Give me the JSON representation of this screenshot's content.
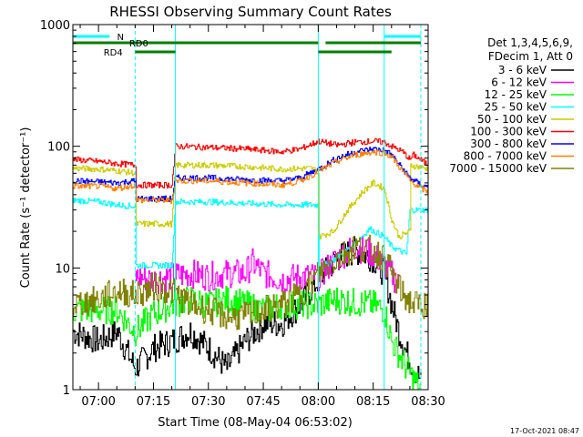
{
  "chart_data": {
    "type": "line",
    "title": "RHESSI Observing Summary Count Rates",
    "xlabel": "Start Time (08-May-04 06:53:02)",
    "ylabel": "Count Rate (s⁻¹ detector⁻¹)",
    "yscale": "log",
    "ylim": [
      1,
      1000
    ],
    "xlim_minutes": [
      -7,
      90
    ],
    "x_ticks": [
      "07:00",
      "07:15",
      "07:30",
      "07:45",
      "08:00",
      "08:15",
      "08:30"
    ],
    "x_tick_minutes": [
      0,
      15,
      30,
      45,
      60,
      75,
      90
    ],
    "y_ticks": [
      "1",
      "10",
      "100",
      "1000"
    ],
    "y_tick_values": [
      1,
      10,
      100,
      1000
    ],
    "legend_header": [
      "Det 1,3,4,5,6,9,",
      "FDecim 1, Att 0"
    ],
    "legend_position": "right",
    "footer_date": "17-Oct-2021 08:47",
    "flag_bars": [
      {
        "label": "N",
        "color": "#00ffff",
        "segments": [
          [
            -7,
            3
          ],
          [
            78,
            88
          ]
        ],
        "level": 1
      },
      {
        "label": "RD0",
        "color": "#008000",
        "segments": [
          [
            -7,
            60
          ],
          [
            62,
            88
          ]
        ],
        "level": 2
      },
      {
        "label": "RD4",
        "color": "#008000",
        "segments": [
          [
            10,
            21
          ],
          [
            60,
            80
          ]
        ],
        "level": 3
      }
    ],
    "vlines": [
      {
        "x": 10,
        "color": "#00ffff",
        "style": "dashed"
      },
      {
        "x": 21,
        "color": "#00ffff",
        "style": "solid"
      },
      {
        "x": 60,
        "color": "#00ffff",
        "style": "solid"
      },
      {
        "x": 78,
        "color": "#00ffff",
        "style": "solid"
      },
      {
        "x": 88,
        "color": "#00ffff",
        "style": "dashed"
      }
    ],
    "series": [
      {
        "name": "3 - 6 keV",
        "color": "#000000",
        "points": [
          [
            -7,
            3
          ],
          [
            0,
            2.5
          ],
          [
            5,
            3
          ],
          [
            10,
            1.5
          ],
          [
            15,
            2.2
          ],
          [
            20,
            2.5
          ],
          [
            25,
            3
          ],
          [
            30,
            2.2
          ],
          [
            35,
            1.5
          ],
          [
            40,
            2.5
          ],
          [
            45,
            3.5
          ],
          [
            50,
            3.5
          ],
          [
            55,
            5
          ],
          [
            60,
            8
          ],
          [
            65,
            12
          ],
          [
            70,
            14
          ],
          [
            75,
            12
          ],
          [
            78,
            9
          ],
          [
            80,
            5
          ],
          [
            82,
            3
          ],
          [
            84,
            2
          ],
          [
            86,
            1.5
          ],
          [
            88,
            1.2
          ]
        ]
      },
      {
        "name": "6 - 12 keV",
        "color": "#ff00ff",
        "points": [
          [
            10,
            8.5
          ],
          [
            15,
            8
          ],
          [
            20,
            8.5
          ],
          [
            25,
            9
          ],
          [
            30,
            8.5
          ],
          [
            35,
            9
          ],
          [
            40,
            9
          ],
          [
            42,
            11
          ],
          [
            45,
            9
          ],
          [
            50,
            8
          ],
          [
            55,
            8.5
          ],
          [
            60,
            8.5
          ],
          [
            65,
            12
          ],
          [
            70,
            15
          ],
          [
            75,
            13
          ],
          [
            80,
            9
          ],
          [
            82,
            7
          ]
        ]
      },
      {
        "name": "12 - 25 keV",
        "color": "#00ff00",
        "points": [
          [
            -7,
            4.5
          ],
          [
            0,
            4.5
          ],
          [
            5,
            4.5
          ],
          [
            10,
            3
          ],
          [
            15,
            4.2
          ],
          [
            20,
            5
          ],
          [
            25,
            5.5
          ],
          [
            30,
            5
          ],
          [
            35,
            5.5
          ],
          [
            40,
            5
          ],
          [
            45,
            4.5
          ],
          [
            50,
            5
          ],
          [
            55,
            5
          ],
          [
            60,
            5
          ],
          [
            65,
            5.5
          ],
          [
            70,
            5.2
          ],
          [
            75,
            5
          ],
          [
            78,
            4.5
          ],
          [
            80,
            2.5
          ],
          [
            84,
            1.5
          ],
          [
            88,
            1
          ]
        ]
      },
      {
        "name": "25 - 50 keV",
        "color": "#00ffff",
        "points": [
          [
            -7,
            36
          ],
          [
            0,
            35
          ],
          [
            5,
            33
          ],
          [
            10,
            32
          ],
          [
            10.1,
            10.5
          ],
          [
            20,
            10.5
          ],
          [
            21,
            35
          ],
          [
            30,
            35
          ],
          [
            40,
            34
          ],
          [
            50,
            33
          ],
          [
            60,
            33
          ],
          [
            60.1,
            10
          ],
          [
            65,
            12
          ],
          [
            70,
            16
          ],
          [
            74,
            21
          ],
          [
            78,
            18
          ],
          [
            80,
            15
          ],
          [
            84,
            13
          ],
          [
            85,
            30
          ],
          [
            90,
            30
          ]
        ]
      },
      {
        "name": "50 - 100 keV",
        "color": "#cccc00",
        "points": [
          [
            -7,
            66
          ],
          [
            0,
            65
          ],
          [
            5,
            63
          ],
          [
            10,
            60
          ],
          [
            10.1,
            23
          ],
          [
            20,
            23
          ],
          [
            21,
            70
          ],
          [
            30,
            70
          ],
          [
            40,
            68
          ],
          [
            50,
            65
          ],
          [
            58,
            66
          ],
          [
            60,
            62
          ],
          [
            60.1,
            18
          ],
          [
            64,
            20
          ],
          [
            68,
            30
          ],
          [
            72,
            42
          ],
          [
            75,
            50
          ],
          [
            78,
            45
          ],
          [
            80,
            25
          ],
          [
            82,
            18
          ],
          [
            85,
            20
          ],
          [
            85.1,
            70
          ],
          [
            90,
            65
          ]
        ]
      },
      {
        "name": "100 - 300 keV",
        "color": "#ff0000",
        "points": [
          [
            -7,
            78
          ],
          [
            0,
            75
          ],
          [
            5,
            72
          ],
          [
            10,
            70
          ],
          [
            10.1,
            48
          ],
          [
            20,
            48
          ],
          [
            21,
            100
          ],
          [
            30,
            98
          ],
          [
            40,
            95
          ],
          [
            50,
            90
          ],
          [
            55,
            95
          ],
          [
            60,
            110
          ],
          [
            65,
            102
          ],
          [
            70,
            108
          ],
          [
            75,
            110
          ],
          [
            78,
            108
          ],
          [
            80,
            100
          ],
          [
            83,
            90
          ],
          [
            85,
            78
          ],
          [
            86,
            85
          ],
          [
            90,
            70
          ]
        ]
      },
      {
        "name": "300 - 800 keV",
        "color": "#0000ff",
        "points": [
          [
            -7,
            52
          ],
          [
            0,
            51
          ],
          [
            5,
            50
          ],
          [
            10,
            52
          ],
          [
            10.1,
            37
          ],
          [
            20,
            37
          ],
          [
            21,
            55
          ],
          [
            30,
            55
          ],
          [
            40,
            53
          ],
          [
            50,
            52
          ],
          [
            55,
            55
          ],
          [
            60,
            65
          ],
          [
            65,
            80
          ],
          [
            70,
            90
          ],
          [
            75,
            95
          ],
          [
            78,
            93
          ],
          [
            80,
            85
          ],
          [
            83,
            65
          ],
          [
            85,
            55
          ],
          [
            88,
            48
          ],
          [
            90,
            46
          ]
        ]
      },
      {
        "name": "800 - 7000 keV",
        "color": "#ff8000",
        "points": [
          [
            -7,
            47
          ],
          [
            0,
            47
          ],
          [
            5,
            45
          ],
          [
            10,
            48
          ],
          [
            10.1,
            36
          ],
          [
            20,
            36
          ],
          [
            21,
            52
          ],
          [
            30,
            52
          ],
          [
            40,
            50
          ],
          [
            50,
            48
          ],
          [
            55,
            52
          ],
          [
            60,
            62
          ],
          [
            65,
            75
          ],
          [
            70,
            85
          ],
          [
            75,
            90
          ],
          [
            78,
            88
          ],
          [
            80,
            82
          ],
          [
            83,
            62
          ],
          [
            85,
            52
          ],
          [
            88,
            45
          ],
          [
            90,
            42
          ]
        ]
      },
      {
        "name": "7000 - 15000 keV",
        "color": "#808000",
        "points": [
          [
            -7,
            5
          ],
          [
            0,
            5.5
          ],
          [
            5,
            6.5
          ],
          [
            10,
            6
          ],
          [
            15,
            7
          ],
          [
            20,
            6.5
          ],
          [
            25,
            5
          ],
          [
            30,
            4.5
          ],
          [
            35,
            4
          ],
          [
            40,
            4
          ],
          [
            45,
            4.5
          ],
          [
            50,
            5
          ],
          [
            55,
            6
          ],
          [
            60,
            9
          ],
          [
            65,
            12
          ],
          [
            70,
            15
          ],
          [
            75,
            14
          ],
          [
            78,
            12
          ],
          [
            80,
            9
          ],
          [
            83,
            6
          ],
          [
            86,
            5
          ],
          [
            90,
            5
          ]
        ]
      }
    ]
  }
}
